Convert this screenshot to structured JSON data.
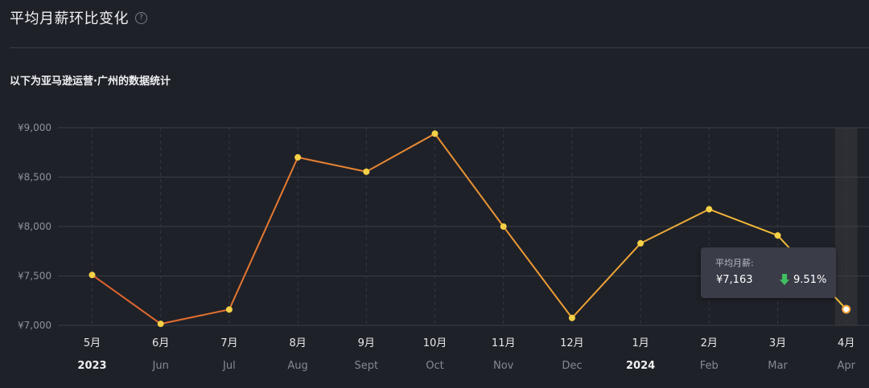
{
  "header": {
    "title": "平均月薪环比变化",
    "help_glyph": "?"
  },
  "subtitle": "以下为亚马逊运营·广州的数据统计",
  "tooltip": {
    "label": "平均月薪:",
    "value": "¥7,163",
    "change": "9.51%",
    "change_direction": "down",
    "change_color": "#3fbf5f"
  },
  "colors": {
    "line_start": "#e0622e",
    "line_end": "#f2c13a",
    "point_fill": "#f6d147",
    "grid": "#3a3d46",
    "highlight_band": "#2c2e34",
    "background": "#1f2128"
  },
  "chart_data": {
    "type": "line",
    "categories": [
      "5月",
      "6月",
      "7月",
      "8月",
      "9月",
      "10月",
      "11月",
      "12月",
      "1月",
      "2月",
      "3月",
      "4月"
    ],
    "sub_labels": [
      "2023",
      "Jun",
      "Jul",
      "Aug",
      "Sept",
      "Oct",
      "Nov",
      "Dec",
      "2024",
      "Feb",
      "Mar",
      "Apr"
    ],
    "sub_label_emphasis": [
      true,
      false,
      false,
      false,
      false,
      false,
      false,
      false,
      true,
      false,
      false,
      false
    ],
    "values": [
      7510,
      7015,
      7160,
      8700,
      8555,
      8940,
      8000,
      7075,
      7830,
      8175,
      7910,
      7163
    ],
    "y_ticks": [
      {
        "value": 7000,
        "label": "¥7,000"
      },
      {
        "value": 7500,
        "label": "¥7,500"
      },
      {
        "value": 8000,
        "label": "¥8,000"
      },
      {
        "value": 8500,
        "label": "¥8,500"
      },
      {
        "value": 9000,
        "label": "¥9,000"
      }
    ],
    "ylim": [
      7000,
      9000
    ],
    "grid": true,
    "highlighted_index": 11
  }
}
